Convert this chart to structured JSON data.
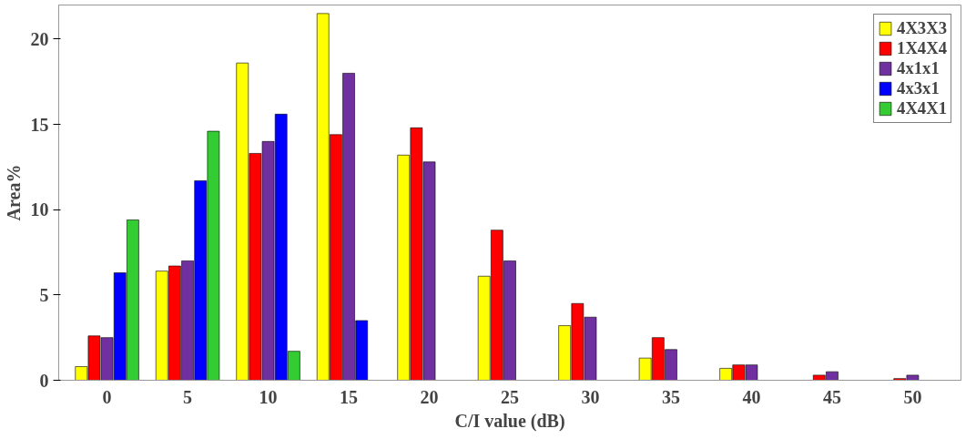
{
  "chart_data": {
    "type": "bar",
    "xlabel": "C/I value (dB)",
    "ylabel": "Area%",
    "categories": [
      "0",
      "5",
      "10",
      "15",
      "20",
      "25",
      "30",
      "35",
      "40",
      "45",
      "50"
    ],
    "series": [
      {
        "name": "4X3X3",
        "color": "#ffff00",
        "values": [
          0.8,
          6.4,
          18.6,
          21.5,
          13.2,
          6.1,
          3.2,
          1.3,
          0.7,
          null,
          null
        ]
      },
      {
        "name": "1X4X4",
        "color": "#ff0000",
        "values": [
          2.6,
          6.7,
          13.3,
          14.4,
          14.8,
          8.8,
          4.5,
          2.5,
          0.9,
          0.3,
          0.1
        ]
      },
      {
        "name": "4x1x1",
        "color": "#7030a0",
        "values": [
          2.5,
          7.0,
          14.0,
          18.0,
          12.8,
          7.0,
          3.7,
          1.8,
          0.9,
          0.5,
          0.3
        ]
      },
      {
        "name": "4x3x1",
        "color": "#0000ff",
        "values": [
          6.3,
          11.7,
          15.6,
          3.5,
          null,
          null,
          null,
          null,
          null,
          null,
          null
        ]
      },
      {
        "name": "4X4X1",
        "color": "#33cc33",
        "values": [
          9.4,
          14.6,
          1.7,
          null,
          null,
          null,
          null,
          null,
          null,
          null,
          null
        ]
      }
    ],
    "ylim": [
      0,
      22
    ],
    "yticks": [
      0,
      5,
      10,
      15,
      20
    ],
    "grid": false,
    "legend": "top right"
  }
}
